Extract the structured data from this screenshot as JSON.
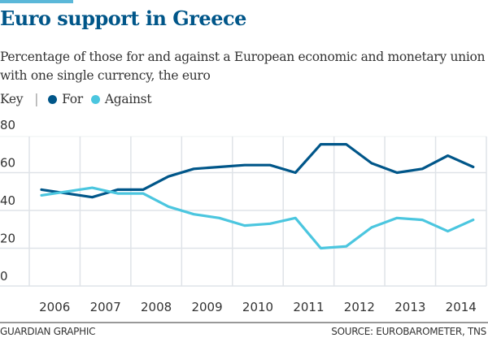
{
  "header": {
    "title": "Euro support in Greece",
    "subtitle": "Percentage of those for and against  a European economic and monetary union with one single currency, the euro"
  },
  "key": {
    "label": "Key",
    "separator": "|",
    "items": [
      {
        "label": "For",
        "color": "#005689"
      },
      {
        "label": "Against",
        "color": "#4bc6df"
      }
    ]
  },
  "footer": {
    "credit": "GUARDIAN GRAPHIC",
    "source": "SOURCE: EUROBAROMETER, TNS"
  },
  "chart_data": {
    "type": "line",
    "title": "Euro support in Greece",
    "xlabel": "",
    "ylabel": "",
    "ylim": [
      0,
      80
    ],
    "yticks": [
      0,
      20,
      40,
      60,
      80
    ],
    "year_labels": [
      "2006",
      "2007",
      "2008",
      "2009",
      "2010",
      "2011",
      "2012",
      "2013",
      "2014"
    ],
    "xlim": [
      2005.6,
      2014.9
    ],
    "grid": true,
    "legend": "top-left",
    "x": [
      2006.0,
      2007.0,
      2007.5,
      2008.0,
      2008.5,
      2009.0,
      2009.5,
      2010.0,
      2010.5,
      2011.0,
      2011.5,
      2012.0,
      2012.5,
      2013.0,
      2013.5,
      2014.0,
      2014.5
    ],
    "series": [
      {
        "name": "For",
        "color": "#005689",
        "values": [
          51,
          47,
          51,
          51,
          58,
          62,
          63,
          64,
          64,
          60,
          75,
          75,
          65,
          60,
          62,
          69,
          63
        ]
      },
      {
        "name": "Against",
        "color": "#4bc6df",
        "values": [
          48,
          52,
          49,
          49,
          42,
          38,
          36,
          32,
          33,
          36,
          20,
          21,
          31,
          36,
          35,
          29,
          35
        ]
      }
    ]
  }
}
